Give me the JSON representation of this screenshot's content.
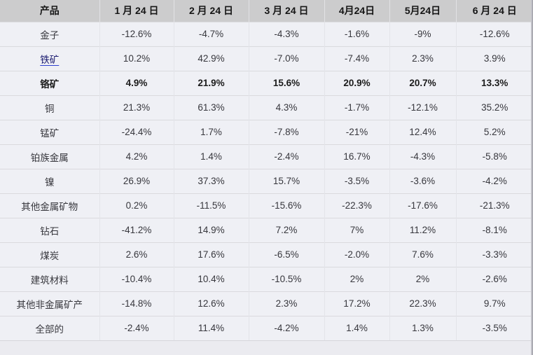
{
  "chart_data": {
    "type": "table",
    "columns": [
      "产品",
      "1 月 24 日",
      "2 月 24 日",
      "3 月 24 日",
      "4月24日",
      "5月24日",
      "6 月 24 日"
    ],
    "rows": [
      {
        "product": "金子",
        "values": [
          "-12.6%",
          "-4.7%",
          "-4.3%",
          "-1.6%",
          "-9%",
          "-12.6%"
        ],
        "bold": false,
        "link": false
      },
      {
        "product": "铁矿",
        "values": [
          "10.2%",
          "42.9%",
          "-7.0%",
          "-7.4%",
          "2.3%",
          "3.9%"
        ],
        "bold": false,
        "link": true
      },
      {
        "product": "铬矿",
        "values": [
          "4.9%",
          "21.9%",
          "15.6%",
          "20.9%",
          "20.7%",
          "13.3%"
        ],
        "bold": true,
        "link": false
      },
      {
        "product": "铜",
        "values": [
          "21.3%",
          "61.3%",
          "4.3%",
          "-1.7%",
          "-12.1%",
          "35.2%"
        ],
        "bold": false,
        "link": false
      },
      {
        "product": "锰矿",
        "values": [
          "-24.4%",
          "1.7%",
          "-7.8%",
          "-21%",
          "12.4%",
          "5.2%"
        ],
        "bold": false,
        "link": false
      },
      {
        "product": "铂族金属",
        "values": [
          "4.2%",
          "1.4%",
          "-2.4%",
          "16.7%",
          "-4.3%",
          "-5.8%"
        ],
        "bold": false,
        "link": false
      },
      {
        "product": "镍",
        "values": [
          "26.9%",
          "37.3%",
          "15.7%",
          "-3.5%",
          "-3.6%",
          "-4.2%"
        ],
        "bold": false,
        "link": false
      },
      {
        "product": "其他金属矿物",
        "values": [
          "0.2%",
          "-11.5%",
          "-15.6%",
          "-22.3%",
          "-17.6%",
          "-21.3%"
        ],
        "bold": false,
        "link": false
      },
      {
        "product": "钻石",
        "values": [
          "-41.2%",
          "14.9%",
          "7.2%",
          "7%",
          "11.2%",
          "-8.1%"
        ],
        "bold": false,
        "link": false
      },
      {
        "product": "煤炭",
        "values": [
          "2.6%",
          "17.6%",
          "-6.5%",
          "-2.0%",
          "7.6%",
          "-3.3%"
        ],
        "bold": false,
        "link": false
      },
      {
        "product": "建筑材料",
        "values": [
          "-10.4%",
          "10.4%",
          "-10.5%",
          "2%",
          "2%",
          "-2.6%"
        ],
        "bold": false,
        "link": false
      },
      {
        "product": "其他非金属矿产",
        "values": [
          "-14.8%",
          "12.6%",
          "2.3%",
          "17.2%",
          "22.3%",
          "9.7%"
        ],
        "bold": false,
        "link": false
      },
      {
        "product": "全部的",
        "values": [
          "-2.4%",
          "11.4%",
          "-4.2%",
          "1.4%",
          "1.3%",
          "-3.5%"
        ],
        "bold": false,
        "link": false
      }
    ]
  },
  "colors": {
    "header_bg": "#cccccd",
    "row_bg": "#eff0f5",
    "page_bg": "#ebebf0",
    "row_border": "#dadade",
    "link_text": "#1b1b70",
    "link_underline": "#2d3fd0"
  }
}
